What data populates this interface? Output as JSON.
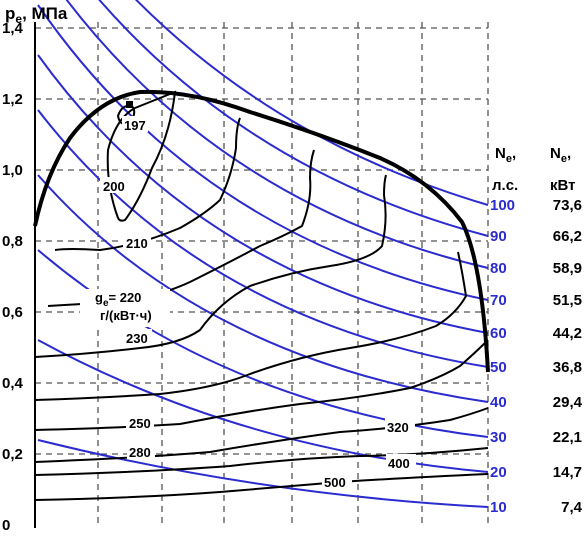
{
  "chart_data": {
    "type": "line",
    "ylabel_main": "p",
    "ylabel_sub": "e",
    "ylabel_unit": ", МПа",
    "ylim": [
      0,
      1.4
    ],
    "yticks": [
      "0",
      "0,2",
      "0,4",
      "0,6",
      "0,8",
      "1,0",
      "1,2",
      "1,4"
    ],
    "ytick_values": [
      0,
      0.2,
      0.4,
      0.6,
      0.8,
      1.0,
      1.2,
      1.4
    ],
    "grid": "dashed",
    "power_header": {
      "hp_main": "N",
      "hp_sub": "e",
      "hp_comma": ",",
      "hp_unit": "л.с.",
      "kw_main": "N",
      "kw_sub": "e",
      "kw_comma": ",",
      "kw_unit": "кВт"
    },
    "power_lines": [
      {
        "hp": "100",
        "kw": "73,6",
        "y_end": 1.0
      },
      {
        "hp": "90",
        "kw": "66,2",
        "y_end": 0.9
      },
      {
        "hp": "80",
        "kw": "58,9",
        "y_end": 0.8
      },
      {
        "hp": "70",
        "kw": "51,5",
        "y_end": 0.7
      },
      {
        "hp": "60",
        "kw": "44,2",
        "y_end": 0.6
      },
      {
        "hp": "50",
        "kw": "36,8",
        "y_end": 0.5
      },
      {
        "hp": "40",
        "kw": "29,4",
        "y_end": 0.4
      },
      {
        "hp": "30",
        "kw": "22,1",
        "y_end": 0.3
      },
      {
        "hp": "20",
        "kw": "14,7",
        "y_end": 0.2
      },
      {
        "hp": "10",
        "kw": "7,4",
        "y_end": 0.1
      }
    ],
    "ge_label": {
      "main": "g",
      "sub": "e",
      "value": "= 220",
      "unit": "г/(кВт·ч)"
    },
    "contour_labels": [
      "197",
      "200",
      "210",
      "230",
      "250",
      "280",
      "320",
      "400",
      "500"
    ],
    "contour_values": [
      197,
      200,
      210,
      220,
      230,
      250,
      280,
      320,
      400,
      500
    ]
  },
  "colors": {
    "power_lines": "#2b2bd0",
    "contours": "#000000",
    "grid": "#555555"
  }
}
